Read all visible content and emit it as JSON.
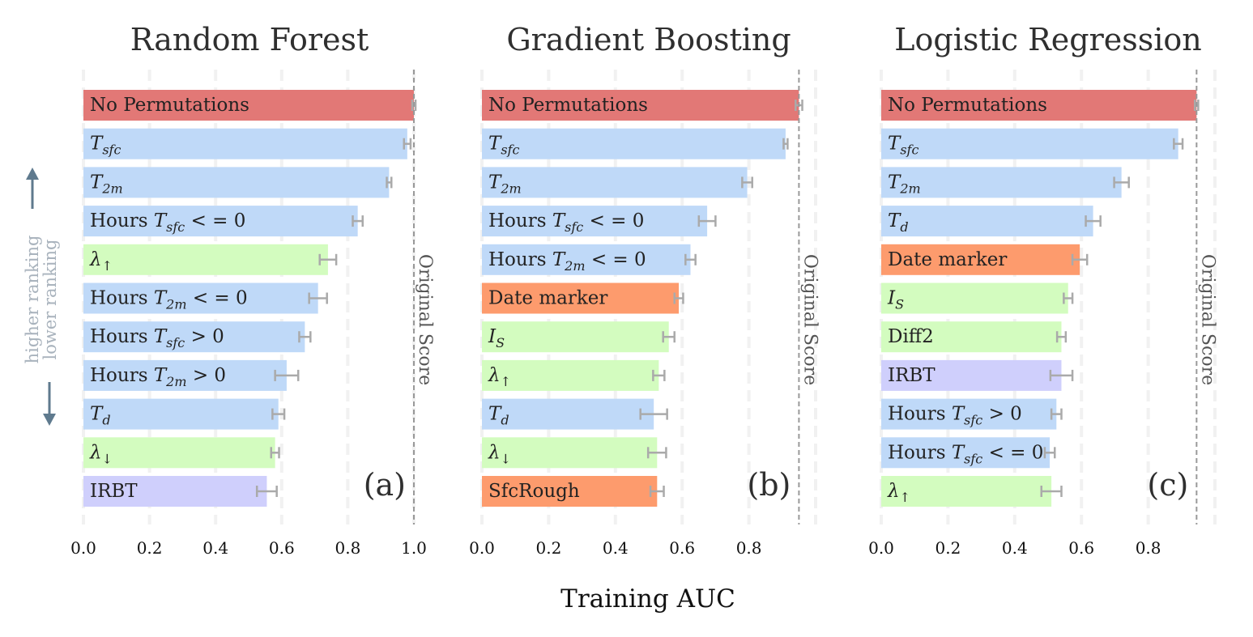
{
  "x_label": "Training AUC",
  "ranking": {
    "higher": "higher ranking",
    "lower": "lower ranking"
  },
  "reference_line_label": "Original Score",
  "colors": {
    "baseline": "#e27876",
    "blue": "#bfd9f8",
    "green": "#d3fcbf",
    "orange": "#fd9b6d",
    "purple": "#cfcffc",
    "errorbar": "#aaaaaa",
    "refline": "#999999",
    "arrow": "#5f7a8e"
  },
  "chart_data": [
    {
      "type": "bar",
      "orientation": "horizontal",
      "title": "Random Forest",
      "panel": "(a)",
      "original_score": 1.0,
      "xlim": [
        0,
        1.0
      ],
      "xticks": [
        "0.0",
        "0.2",
        "0.4",
        "0.6",
        "0.8",
        "1.0"
      ],
      "bars": [
        {
          "label": [
            {
              "t": "No Permutations"
            }
          ],
          "value": 1.0,
          "error": 0.005,
          "color": "baseline"
        },
        {
          "label": [
            {
              "t": "T",
              "i": true
            },
            {
              "t": "sfc",
              "i": true,
              "sub": true
            }
          ],
          "value": 0.98,
          "error": 0.01,
          "color": "blue"
        },
        {
          "label": [
            {
              "t": "T",
              "i": true
            },
            {
              "t": "2m",
              "i": true,
              "sub": true
            }
          ],
          "value": 0.925,
          "error": 0.007,
          "color": "blue"
        },
        {
          "label": [
            {
              "t": "Hours "
            },
            {
              "t": "T",
              "i": true
            },
            {
              "t": "sfc",
              "i": true,
              "sub": true
            },
            {
              "t": " < = 0"
            }
          ],
          "value": 0.83,
          "error": 0.015,
          "color": "blue"
        },
        {
          "label": [
            {
              "t": "λ",
              "i": true
            },
            {
              "t": "↑",
              "sub": true
            }
          ],
          "value": 0.74,
          "error": 0.025,
          "color": "green"
        },
        {
          "label": [
            {
              "t": "Hours "
            },
            {
              "t": "T",
              "i": true
            },
            {
              "t": "2m",
              "i": true,
              "sub": true
            },
            {
              "t": " < = 0"
            }
          ],
          "value": 0.71,
          "error": 0.027,
          "color": "blue"
        },
        {
          "label": [
            {
              "t": "Hours "
            },
            {
              "t": "T",
              "i": true
            },
            {
              "t": "sfc",
              "i": true,
              "sub": true
            },
            {
              "t": " > 0"
            }
          ],
          "value": 0.67,
          "error": 0.017,
          "color": "blue"
        },
        {
          "label": [
            {
              "t": "Hours "
            },
            {
              "t": "T",
              "i": true
            },
            {
              "t": "2m",
              "i": true,
              "sub": true
            },
            {
              "t": " > 0"
            }
          ],
          "value": 0.615,
          "error": 0.035,
          "color": "blue"
        },
        {
          "label": [
            {
              "t": "T",
              "i": true
            },
            {
              "t": "d",
              "i": true,
              "sub": true
            }
          ],
          "value": 0.59,
          "error": 0.018,
          "color": "blue"
        },
        {
          "label": [
            {
              "t": "λ",
              "i": true
            },
            {
              "t": "↓",
              "sub": true
            }
          ],
          "value": 0.58,
          "error": 0.012,
          "color": "green"
        },
        {
          "label": [
            {
              "t": "IRBT"
            }
          ],
          "value": 0.555,
          "error": 0.03,
          "color": "purple"
        }
      ]
    },
    {
      "type": "bar",
      "orientation": "horizontal",
      "title": "Gradient Boosting",
      "panel": "(b)",
      "original_score": 0.95,
      "xlim": [
        0,
        1.0
      ],
      "xticks": [
        "0.0",
        "0.2",
        "0.4",
        "0.6",
        "0.8"
      ],
      "bars": [
        {
          "label": [
            {
              "t": "No Permutations"
            }
          ],
          "value": 0.95,
          "error": 0.01,
          "color": "baseline"
        },
        {
          "label": [
            {
              "t": "T",
              "i": true
            },
            {
              "t": "sfc",
              "i": true,
              "sub": true
            }
          ],
          "value": 0.91,
          "error": 0.006,
          "color": "blue"
        },
        {
          "label": [
            {
              "t": "T",
              "i": true
            },
            {
              "t": "2m",
              "i": true,
              "sub": true
            }
          ],
          "value": 0.795,
          "error": 0.015,
          "color": "blue"
        },
        {
          "label": [
            {
              "t": "Hours "
            },
            {
              "t": "T",
              "i": true
            },
            {
              "t": "sfc",
              "i": true,
              "sub": true
            },
            {
              "t": " < = 0"
            }
          ],
          "value": 0.675,
          "error": 0.025,
          "color": "blue"
        },
        {
          "label": [
            {
              "t": "Hours "
            },
            {
              "t": "T",
              "i": true
            },
            {
              "t": "2m",
              "i": true,
              "sub": true
            },
            {
              "t": " < = 0"
            }
          ],
          "value": 0.625,
          "error": 0.015,
          "color": "blue"
        },
        {
          "label": [
            {
              "t": "Date marker"
            }
          ],
          "value": 0.59,
          "error": 0.013,
          "color": "orange"
        },
        {
          "label": [
            {
              "t": "I",
              "i": true
            },
            {
              "t": "S",
              "i": true,
              "sub": true
            }
          ],
          "value": 0.56,
          "error": 0.017,
          "color": "green"
        },
        {
          "label": [
            {
              "t": "λ",
              "i": true
            },
            {
              "t": "↑",
              "sub": true
            }
          ],
          "value": 0.53,
          "error": 0.017,
          "color": "green"
        },
        {
          "label": [
            {
              "t": "T",
              "i": true
            },
            {
              "t": "d",
              "i": true,
              "sub": true
            }
          ],
          "value": 0.515,
          "error": 0.04,
          "color": "blue"
        },
        {
          "label": [
            {
              "t": "λ",
              "i": true
            },
            {
              "t": "↓",
              "sub": true
            }
          ],
          "value": 0.525,
          "error": 0.027,
          "color": "green"
        },
        {
          "label": [
            {
              "t": "SfcRough"
            }
          ],
          "value": 0.525,
          "error": 0.02,
          "color": "orange"
        }
      ]
    },
    {
      "type": "bar",
      "orientation": "horizontal",
      "title": "Logistic Regression",
      "panel": "(c)",
      "original_score": 0.945,
      "xlim": [
        0,
        1.0
      ],
      "xticks": [
        "0.0",
        "0.2",
        "0.4",
        "0.6",
        "0.8"
      ],
      "bars": [
        {
          "label": [
            {
              "t": "No Permutations"
            }
          ],
          "value": 0.945,
          "error": 0.005,
          "color": "baseline"
        },
        {
          "label": [
            {
              "t": "T",
              "i": true
            },
            {
              "t": "sfc",
              "i": true,
              "sub": true
            }
          ],
          "value": 0.89,
          "error": 0.013,
          "color": "blue"
        },
        {
          "label": [
            {
              "t": "T",
              "i": true
            },
            {
              "t": "2m",
              "i": true,
              "sub": true
            }
          ],
          "value": 0.72,
          "error": 0.022,
          "color": "blue"
        },
        {
          "label": [
            {
              "t": "T",
              "i": true
            },
            {
              "t": "d",
              "i": true,
              "sub": true
            }
          ],
          "value": 0.635,
          "error": 0.022,
          "color": "blue"
        },
        {
          "label": [
            {
              "t": "Date marker"
            }
          ],
          "value": 0.595,
          "error": 0.022,
          "color": "orange"
        },
        {
          "label": [
            {
              "t": "I",
              "i": true
            },
            {
              "t": "S",
              "i": true,
              "sub": true
            }
          ],
          "value": 0.56,
          "error": 0.013,
          "color": "green"
        },
        {
          "label": [
            {
              "t": "Diff2"
            }
          ],
          "value": 0.54,
          "error": 0.013,
          "color": "green"
        },
        {
          "label": [
            {
              "t": "IRBT"
            }
          ],
          "value": 0.54,
          "error": 0.033,
          "color": "purple"
        },
        {
          "label": [
            {
              "t": "Hours "
            },
            {
              "t": "T",
              "i": true
            },
            {
              "t": "sfc",
              "i": true,
              "sub": true
            },
            {
              "t": " > 0"
            }
          ],
          "value": 0.525,
          "error": 0.015,
          "color": "blue"
        },
        {
          "label": [
            {
              "t": "Hours "
            },
            {
              "t": "T",
              "i": true
            },
            {
              "t": "sfc",
              "i": true,
              "sub": true
            },
            {
              "t": " < = 0"
            }
          ],
          "value": 0.505,
          "error": 0.015,
          "color": "blue"
        },
        {
          "label": [
            {
              "t": "λ",
              "i": true
            },
            {
              "t": "↑",
              "sub": true
            }
          ],
          "value": 0.51,
          "error": 0.03,
          "color": "green"
        }
      ]
    }
  ]
}
